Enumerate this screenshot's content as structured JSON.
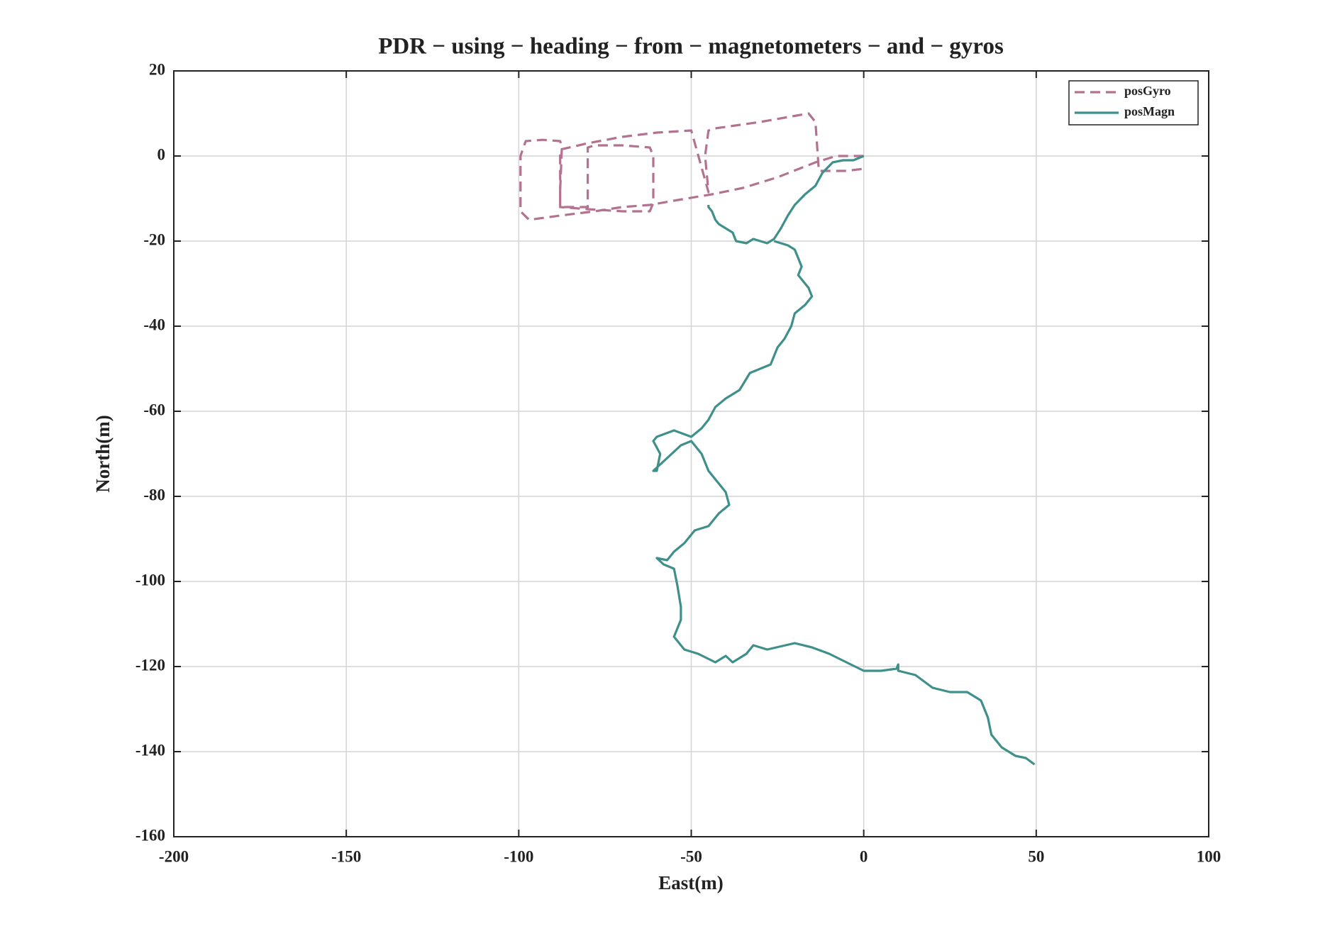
{
  "chart_data": {
    "type": "line",
    "title": "PDR − using − heading − from − magnetometers − and − gyros",
    "x_label": "East(m)",
    "y_label": "North(m)",
    "xlim": [
      -200,
      100
    ],
    "xticks": [
      -200,
      -150,
      -100,
      -50,
      0,
      50,
      100
    ],
    "ylim": [
      -160,
      20
    ],
    "yticks": [
      20,
      0,
      -20,
      -40,
      -60,
      -80,
      -100,
      -120,
      -140,
      -160
    ],
    "grid": true,
    "legend": "upper-right",
    "series": [
      {
        "name": "posGyro",
        "color": "#b3728f",
        "dash": "dashed",
        "x": [
          0,
          -8,
          -14,
          -25,
          -35,
          -44,
          -55,
          -62,
          -70,
          -78,
          -88,
          -97,
          -99.5,
          -99.5,
          -98,
          -93,
          -88,
          -87.5,
          -88,
          -88,
          -80,
          -80,
          -78,
          -70,
          -62,
          -61,
          -61,
          -62,
          -70,
          -80,
          -88,
          -88,
          -80,
          -70,
          -60,
          -50,
          -45,
          -46,
          -45,
          -43,
          -30,
          -16,
          -14,
          -13,
          -5,
          0
        ],
        "values": [
          0,
          0,
          -1.5,
          -5,
          -7.5,
          -9,
          -10.5,
          -11.5,
          -12,
          -13,
          -14,
          -15,
          -13,
          0,
          3.5,
          3.8,
          3.5,
          2,
          -8,
          -12,
          -12,
          2,
          2.5,
          2.5,
          2,
          0,
          -11,
          -13,
          -13,
          -12.5,
          -12,
          1.5,
          3,
          4.5,
          5.5,
          6,
          -8.5,
          0,
          6,
          6.5,
          8,
          10,
          8,
          -3.5,
          -3.5,
          -3
        ]
      },
      {
        "name": "posMagn",
        "color": "#3f8f8a",
        "dash": "solid",
        "x": [
          0,
          -3,
          -6,
          -9,
          -12,
          -14,
          -17,
          -20,
          -22,
          -24,
          -26,
          -28,
          -30,
          -32,
          -34,
          -37,
          -38,
          -40,
          -42,
          -43,
          -44,
          -45,
          -45,
          null,
          -26,
          -22,
          -20,
          -19,
          -18,
          -19,
          -16,
          -15,
          -17,
          -20,
          -21,
          -23,
          -25,
          -27,
          -30,
          -33,
          -36,
          -40,
          -43,
          -45,
          -47,
          -50,
          -55,
          -60,
          -61,
          -59,
          -60,
          -61,
          -57,
          -53,
          -50,
          -47,
          -45,
          -40,
          -39,
          -42,
          -45,
          -49,
          -52,
          -55,
          -57,
          -60,
          -58,
          -55,
          -54,
          -53,
          -53,
          -55,
          -52,
          -48,
          -43,
          -40,
          -38,
          -34,
          -32,
          -28,
          -20,
          -15,
          -10,
          -5,
          0,
          5,
          9.5,
          10,
          10,
          15,
          20,
          25,
          30,
          34,
          36,
          37,
          40,
          44,
          47,
          49.5
        ],
        "values": [
          0,
          -1,
          -1,
          -1.5,
          -4,
          -7,
          -9,
          -11.5,
          -14,
          -17,
          -19.5,
          -20.5,
          -20,
          -19.5,
          -20.5,
          -20,
          -18,
          -17,
          -16,
          -15,
          -13,
          -12,
          -11.5,
          null,
          -20,
          -21,
          -22,
          -24,
          -26,
          -28,
          -31,
          -33,
          -35,
          -37,
          -40,
          -43,
          -45,
          -49,
          -50,
          -51,
          -55,
          -57,
          -59,
          -62,
          -64,
          -66,
          -64.5,
          -66,
          -67,
          -70,
          -74,
          -74,
          -71,
          -68,
          -67,
          -70,
          -74,
          -79,
          -82,
          -84,
          -87,
          -88,
          -91,
          -93,
          -95,
          -94.5,
          -96,
          -97,
          -101,
          -106,
          -109,
          -113,
          -116,
          -117,
          -119,
          -117.5,
          -119,
          -117,
          -115,
          -116,
          -114.5,
          -115.5,
          -117,
          -119,
          -121,
          -121,
          -120.5,
          -119.5,
          -121,
          -122,
          -125,
          -126,
          -126,
          -128,
          -132,
          -136,
          -139,
          -141,
          -141.5,
          -143
        ]
      }
    ]
  }
}
